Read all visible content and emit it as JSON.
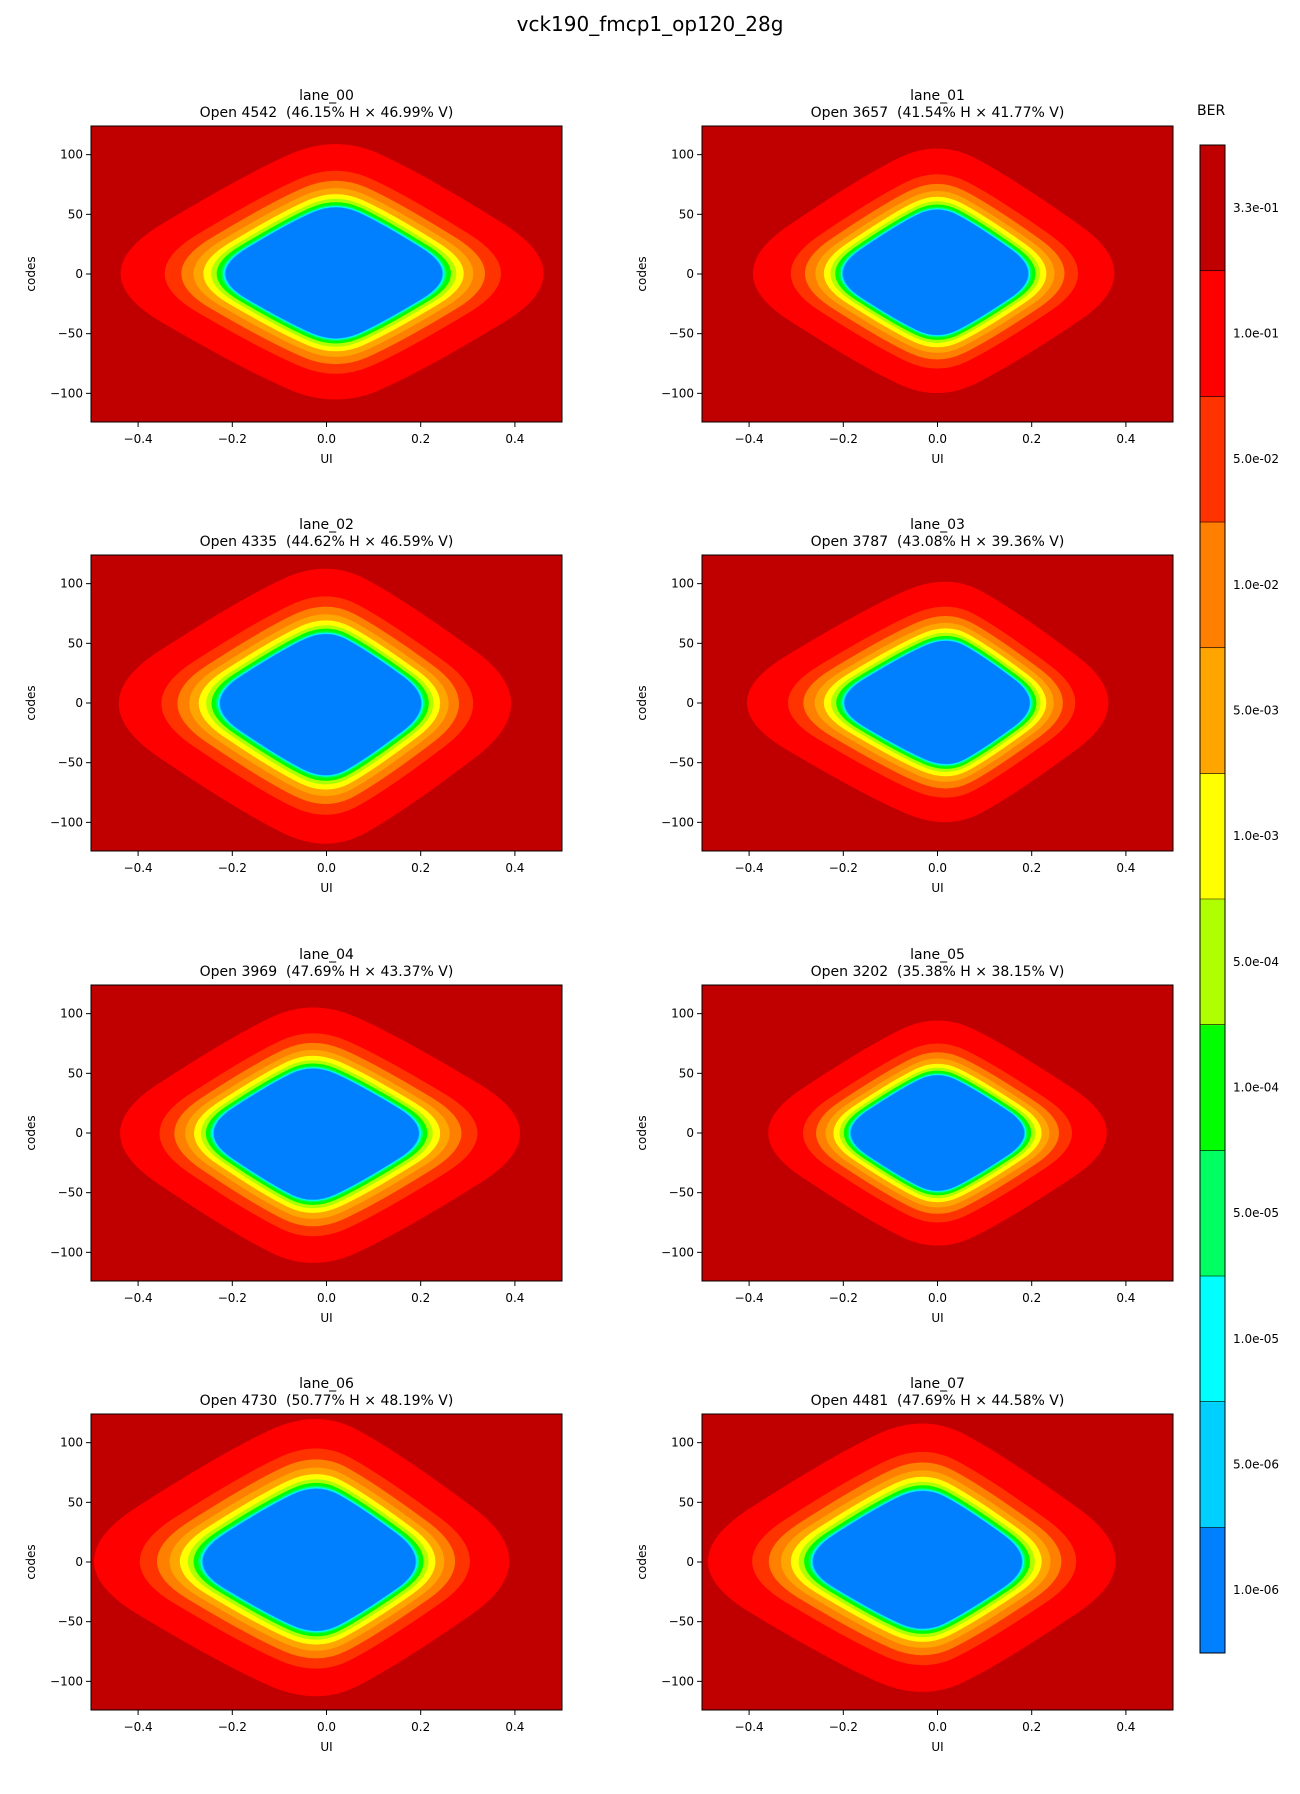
{
  "title": "vck190_fmcp1_op120_28g",
  "colorbar": {
    "label": "BER",
    "levels": [
      {
        "label": "1.0e-06",
        "color": "#0080ff"
      },
      {
        "label": "5.0e-06",
        "color": "#00d0ff"
      },
      {
        "label": "1.0e-05",
        "color": "#00ffff"
      },
      {
        "label": "5.0e-05",
        "color": "#00ff60"
      },
      {
        "label": "1.0e-04",
        "color": "#00ff00"
      },
      {
        "label": "5.0e-04",
        "color": "#b0ff00"
      },
      {
        "label": "1.0e-03",
        "color": "#ffff00"
      },
      {
        "label": "5.0e-03",
        "color": "#ffa500"
      },
      {
        "label": "1.0e-02",
        "color": "#ff7f00"
      },
      {
        "label": "5.0e-02",
        "color": "#ff3300"
      },
      {
        "label": "1.0e-01",
        "color": "#ff0000"
      },
      {
        "label": "3.3e-01",
        "color": "#c00000"
      }
    ]
  },
  "chart_data": [
    {
      "type": "heatmap",
      "title": "lane_00",
      "subtitle": "Open 4542  (46.15% H × 46.99% V)",
      "xlabel": "UI",
      "ylabel": "codes",
      "xlim": [
        -0.5,
        0.5
      ],
      "ylim": [
        -124,
        124
      ],
      "xticks": [
        -0.4,
        -0.2,
        0.0,
        0.2,
        0.4
      ],
      "yticks": [
        -100,
        -50,
        0,
        50,
        100
      ],
      "center_x": 0.02,
      "eye_left": -0.26,
      "eye_right": 0.29,
      "eye_top": 60,
      "eye_bottom": -58
    },
    {
      "type": "heatmap",
      "title": "lane_01",
      "subtitle": "Open 3657  (41.54% H × 41.77% V)",
      "xlabel": "UI",
      "ylabel": "codes",
      "xlim": [
        -0.5,
        0.5
      ],
      "ylim": [
        -124,
        124
      ],
      "xticks": [
        -0.4,
        -0.2,
        0.0,
        0.2,
        0.4
      ],
      "yticks": [
        -100,
        -50,
        0,
        50,
        100
      ],
      "center_x": 0.0,
      "eye_left": -0.24,
      "eye_right": 0.23,
      "eye_top": 58,
      "eye_bottom": -55
    },
    {
      "type": "heatmap",
      "title": "lane_02",
      "subtitle": "Open 4335  (44.62% H × 46.59% V)",
      "xlabel": "UI",
      "ylabel": "codes",
      "xlim": [
        -0.5,
        0.5
      ],
      "ylim": [
        -124,
        124
      ],
      "xticks": [
        -0.4,
        -0.2,
        0.0,
        0.2,
        0.4
      ],
      "yticks": [
        -100,
        -50,
        0,
        50,
        100
      ],
      "center_x": 0.0,
      "eye_left": -0.27,
      "eye_right": 0.24,
      "eye_top": 62,
      "eye_bottom": -65
    },
    {
      "type": "heatmap",
      "title": "lane_03",
      "subtitle": "Open 3787  (43.08% H × 39.36% V)",
      "xlabel": "UI",
      "ylabel": "codes",
      "xlim": [
        -0.5,
        0.5
      ],
      "ylim": [
        -124,
        124
      ],
      "xticks": [
        -0.4,
        -0.2,
        0.0,
        0.2,
        0.4
      ],
      "yticks": [
        -100,
        -50,
        0,
        50,
        100
      ],
      "center_x": 0.02,
      "eye_left": -0.24,
      "eye_right": 0.23,
      "eye_top": 56,
      "eye_bottom": -55
    },
    {
      "type": "heatmap",
      "title": "lane_04",
      "subtitle": "Open 3969  (47.69% H × 43.37% V)",
      "xlabel": "UI",
      "ylabel": "codes",
      "xlim": [
        -0.5,
        0.5
      ],
      "ylim": [
        -124,
        124
      ],
      "xticks": [
        -0.4,
        -0.2,
        0.0,
        0.2,
        0.4
      ],
      "yticks": [
        -100,
        -50,
        0,
        50,
        100
      ],
      "center_x": -0.03,
      "eye_left": -0.28,
      "eye_right": 0.24,
      "eye_top": 58,
      "eye_bottom": -60
    },
    {
      "type": "heatmap",
      "title": "lane_05",
      "subtitle": "Open 3202  (35.38% H × 38.15% V)",
      "xlabel": "UI",
      "ylabel": "codes",
      "xlim": [
        -0.5,
        0.5
      ],
      "ylim": [
        -124,
        124
      ],
      "xticks": [
        -0.4,
        -0.2,
        0.0,
        0.2,
        0.4
      ],
      "yticks": [
        -100,
        -50,
        0,
        50,
        100
      ],
      "center_x": 0.0,
      "eye_left": -0.22,
      "eye_right": 0.22,
      "eye_top": 52,
      "eye_bottom": -52
    },
    {
      "type": "heatmap",
      "title": "lane_06",
      "subtitle": "Open 4730  (50.77% H × 48.19% V)",
      "xlabel": "UI",
      "ylabel": "codes",
      "xlim": [
        -0.5,
        0.5
      ],
      "ylim": [
        -124,
        124
      ],
      "xticks": [
        -0.4,
        -0.2,
        0.0,
        0.2,
        0.4
      ],
      "yticks": [
        -100,
        -50,
        0,
        50,
        100
      ],
      "center_x": -0.02,
      "eye_left": -0.31,
      "eye_right": 0.23,
      "eye_top": 66,
      "eye_bottom": -62
    },
    {
      "type": "heatmap",
      "title": "lane_07",
      "subtitle": "Open 4481  (47.69% H × 44.58% V)",
      "xlabel": "UI",
      "ylabel": "codes",
      "xlim": [
        -0.5,
        0.5
      ],
      "ylim": [
        -124,
        124
      ],
      "xticks": [
        -0.4,
        -0.2,
        0.0,
        0.2,
        0.4
      ],
      "yticks": [
        -100,
        -50,
        0,
        50,
        100
      ],
      "center_x": -0.03,
      "eye_left": -0.31,
      "eye_right": 0.22,
      "eye_top": 64,
      "eye_bottom": -60
    }
  ]
}
